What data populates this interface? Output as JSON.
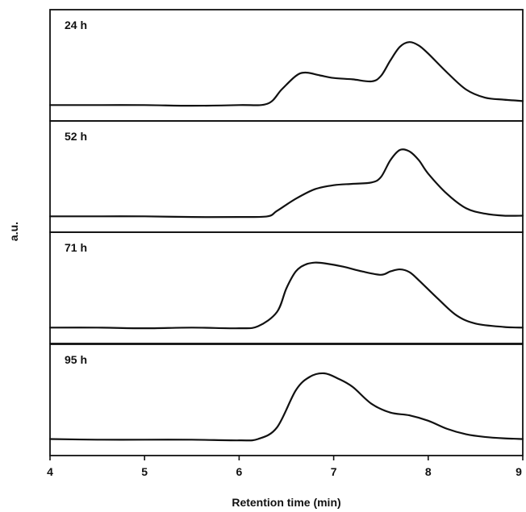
{
  "chart_data": {
    "type": "line",
    "xlabel": "Retention time (min)",
    "ylabel": "a.u.",
    "xlim": [
      4,
      9
    ],
    "x_ticks": [
      "4",
      "5",
      "6",
      "7",
      "8",
      "9"
    ],
    "grid": false,
    "panels": [
      {
        "label": "24 h",
        "x": [
          4.0,
          4.5,
          5.0,
          5.5,
          6.0,
          6.3,
          6.45,
          6.6,
          6.7,
          6.85,
          7.0,
          7.2,
          7.4,
          7.5,
          7.6,
          7.7,
          7.8,
          7.9,
          8.0,
          8.2,
          8.4,
          8.6,
          8.8,
          9.0
        ],
        "y": [
          0.02,
          0.02,
          0.02,
          0.01,
          0.02,
          0.04,
          0.25,
          0.45,
          0.5,
          0.46,
          0.42,
          0.4,
          0.37,
          0.45,
          0.68,
          0.88,
          0.95,
          0.9,
          0.78,
          0.5,
          0.25,
          0.13,
          0.1,
          0.08
        ]
      },
      {
        "label": "52 h",
        "x": [
          4.0,
          4.5,
          5.0,
          5.5,
          6.0,
          6.3,
          6.4,
          6.6,
          6.8,
          7.0,
          7.2,
          7.4,
          7.5,
          7.6,
          7.7,
          7.8,
          7.9,
          8.0,
          8.2,
          8.4,
          8.6,
          8.8,
          9.0
        ],
        "y": [
          0.02,
          0.02,
          0.02,
          0.01,
          0.01,
          0.02,
          0.1,
          0.28,
          0.42,
          0.48,
          0.5,
          0.52,
          0.6,
          0.85,
          1.0,
          0.98,
          0.85,
          0.65,
          0.35,
          0.14,
          0.06,
          0.03,
          0.03
        ]
      },
      {
        "label": "71 h",
        "x": [
          4.0,
          4.5,
          5.0,
          5.5,
          6.0,
          6.2,
          6.4,
          6.5,
          6.6,
          6.7,
          6.8,
          6.9,
          7.1,
          7.3,
          7.5,
          7.6,
          7.7,
          7.8,
          7.9,
          8.1,
          8.3,
          8.5,
          8.8,
          9.0
        ],
        "y": [
          0.02,
          0.02,
          0.01,
          0.02,
          0.01,
          0.04,
          0.25,
          0.6,
          0.85,
          0.95,
          0.98,
          0.97,
          0.92,
          0.85,
          0.8,
          0.85,
          0.88,
          0.84,
          0.72,
          0.45,
          0.2,
          0.08,
          0.03,
          0.02
        ]
      },
      {
        "label": "95 h",
        "x": [
          4.0,
          4.5,
          5.0,
          5.5,
          6.0,
          6.2,
          6.4,
          6.6,
          6.75,
          6.9,
          7.05,
          7.2,
          7.4,
          7.6,
          7.8,
          8.0,
          8.2,
          8.4,
          8.6,
          8.8,
          9.0
        ],
        "y": [
          0.03,
          0.02,
          0.02,
          0.02,
          0.01,
          0.03,
          0.2,
          0.75,
          0.95,
          1.0,
          0.92,
          0.8,
          0.55,
          0.42,
          0.38,
          0.3,
          0.18,
          0.1,
          0.06,
          0.04,
          0.03
        ]
      }
    ]
  }
}
